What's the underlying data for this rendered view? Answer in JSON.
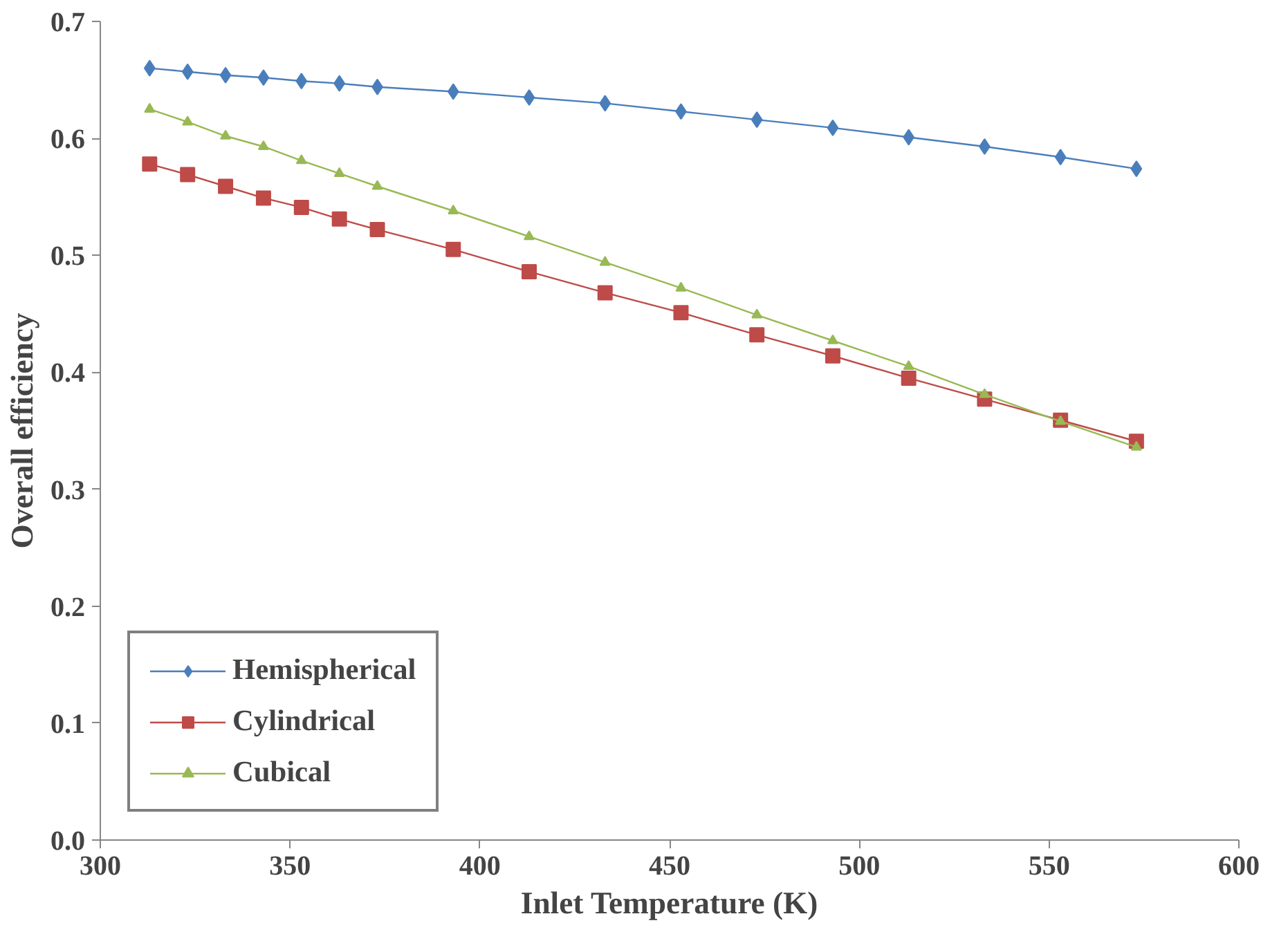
{
  "chart_data": {
    "type": "line",
    "xlabel": "Inlet Temperature (K)",
    "ylabel": "Overall efficiency",
    "x": [
      313,
      323,
      333,
      343,
      353,
      363,
      373,
      393,
      413,
      433,
      453,
      473,
      493,
      513,
      533,
      553,
      573
    ],
    "series": [
      {
        "name": "Hemispherical",
        "color": "#4a7ebb",
        "marker": "diamond",
        "values": [
          0.66,
          0.657,
          0.654,
          0.652,
          0.649,
          0.647,
          0.644,
          0.64,
          0.635,
          0.63,
          0.623,
          0.616,
          0.609,
          0.601,
          0.593,
          0.584,
          0.574
        ]
      },
      {
        "name": "Cylindrical",
        "color": "#be4b48",
        "marker": "square",
        "values": [
          0.578,
          0.569,
          0.559,
          0.549,
          0.541,
          0.531,
          0.522,
          0.505,
          0.486,
          0.468,
          0.451,
          0.432,
          0.414,
          0.395,
          0.377,
          0.359,
          0.341
        ]
      },
      {
        "name": "Cubical",
        "color": "#98b954",
        "marker": "triangle",
        "values": [
          0.625,
          0.614,
          0.602,
          0.593,
          0.581,
          0.57,
          0.559,
          0.538,
          0.516,
          0.494,
          0.472,
          0.449,
          0.427,
          0.405,
          0.381,
          0.358,
          0.336
        ]
      }
    ],
    "xlim": [
      300,
      600
    ],
    "xticks": [
      300,
      350,
      400,
      450,
      500,
      550,
      600
    ],
    "ylim": [
      0,
      0.7
    ],
    "yticks": [
      {
        "value": 0,
        "label": "0.0"
      },
      0.1,
      0.2,
      0.3,
      0.4,
      0.5,
      0.6,
      0.7
    ],
    "grid": false,
    "legend": "bottom left",
    "line_style": "solid"
  }
}
